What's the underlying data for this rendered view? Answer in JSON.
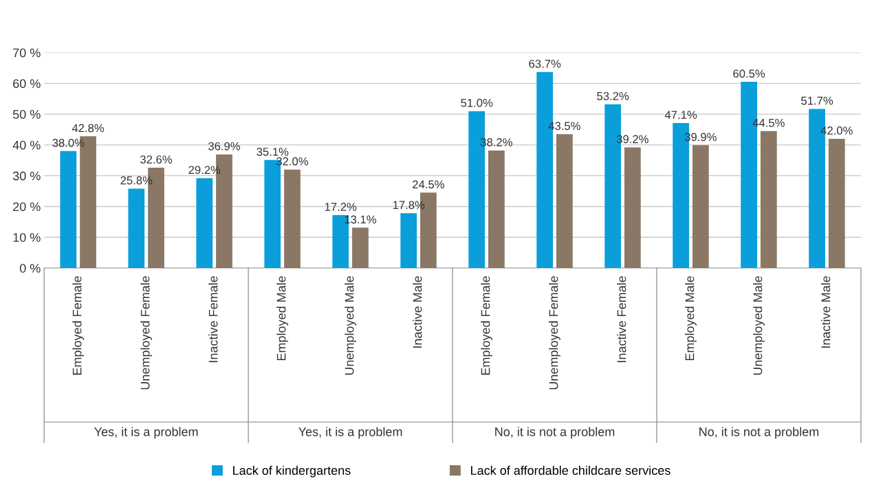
{
  "chart_data": {
    "type": "bar",
    "categories": [
      "Employed Female",
      "Unemployed Female",
      "Inactive Female",
      "Employed Male",
      "Unemployed Male",
      "Inactive Male",
      "Employed Female",
      "Unemployed Female",
      "Inactive Female",
      "Employed Male",
      "Unemployed Male",
      "Inactive Male"
    ],
    "annotations": [
      "Yes, it is a problem",
      "Yes, it is a problem",
      "No, it is not a problem",
      "No, it is not a problem"
    ],
    "series": [
      {
        "name": "Lack of kindergartens",
        "color": "#0a9fdb",
        "values": [
          38.0,
          25.8,
          29.2,
          35.1,
          17.2,
          17.8,
          51.0,
          63.7,
          53.2,
          47.1,
          60.5,
          51.7
        ],
        "value_labels": [
          "38.0%",
          "25.8%",
          "29.2%",
          "35.1%",
          "17.2%",
          "17.8%",
          "51.0%",
          "63.7%",
          "53.2%",
          "47.1%",
          "60.5%",
          "51.7%"
        ]
      },
      {
        "name": "Lack of affordable childcare services",
        "color": "#8b7765",
        "values": [
          42.8,
          32.6,
          36.9,
          32.0,
          13.1,
          24.5,
          38.2,
          43.5,
          39.2,
          39.9,
          44.5,
          42.0
        ],
        "value_labels": [
          "42.8%",
          "32.6%",
          "36.9%",
          "32.0%",
          "13.1%",
          "24.5%",
          "38.2%",
          "43.5%",
          "39.2%",
          "39.9%",
          "44.5%",
          "42.0%"
        ]
      }
    ],
    "ylim": [
      0,
      70
    ],
    "yticks": [
      {
        "value": 0,
        "label": "0 %"
      },
      {
        "value": 10,
        "label": "10 %"
      },
      {
        "value": 20,
        "label": "20 %"
      },
      {
        "value": 30,
        "label": "30 %"
      },
      {
        "value": 40,
        "label": "40 %"
      },
      {
        "value": 50,
        "label": "50 %"
      },
      {
        "value": 60,
        "label": "60 %"
      },
      {
        "value": 70,
        "label": "70 %"
      }
    ],
    "grid": "y",
    "legend": "bottom"
  }
}
